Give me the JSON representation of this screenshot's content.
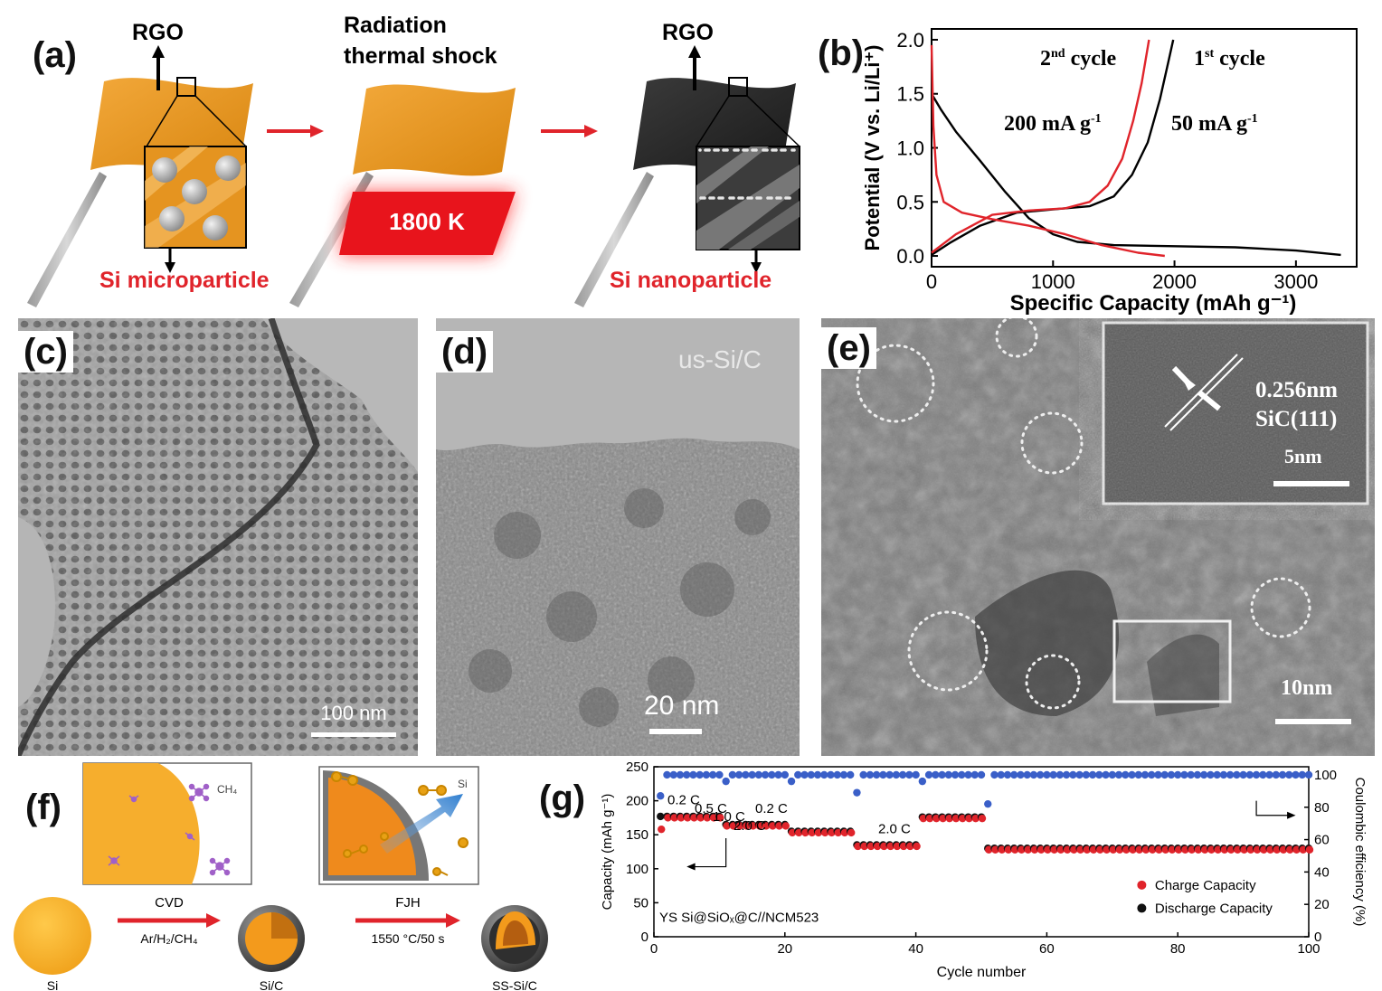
{
  "panels": {
    "a": {
      "label": "(a)",
      "rgo_left": "RGO",
      "rgo_right": "RGO",
      "process_title_1": "Radiation",
      "process_title_2": "thermal shock",
      "temperature": "1800 K",
      "left_caption": "Si microparticle",
      "right_caption": "Si nanoparticle",
      "colors": {
        "sheet": "#e8951e",
        "dark_sheet": "#2b2b2b",
        "heat": "#e8141c",
        "caption": "#e0242b"
      }
    },
    "b": {
      "label": "(b)",
      "annotations": {
        "cycle2": {
          "num": "2",
          "sup": "nd",
          "rest": " cycle"
        },
        "cycle1": {
          "num": "1",
          "sup": "st",
          "rest": " cycle"
        },
        "rate2": {
          "text": "200 mA g",
          "sup": "-1"
        },
        "rate1": {
          "text": "50 mA g",
          "sup": "-1"
        }
      }
    },
    "c": {
      "label": "(c)",
      "scalebar": "100 nm"
    },
    "d": {
      "label": "(d)",
      "sample": "us-Si/C",
      "scalebar": "20 nm"
    },
    "e": {
      "label": "(e)",
      "inset_spacing": "0.256nm",
      "inset_plane": "SiC(111)",
      "inset_scalebar": "5nm",
      "scalebar": "10nm"
    },
    "f": {
      "label": "(f)",
      "ch4": "CH₄",
      "si_label": "Si",
      "step1": "CVD",
      "step1_cond": "Ar/H₂/CH₄",
      "step2": "FJH",
      "step2_cond": "1550 °C/50 s",
      "bottom": [
        "Si",
        "Si/C",
        "SS-Si/C"
      ],
      "colors": {
        "si": "#f6ae2d",
        "shell": "#555555",
        "arrow": "#e0242b"
      }
    },
    "g": {
      "label": "(g)"
    }
  },
  "chart_data": [
    {
      "id": "b",
      "type": "line",
      "xlabel": "Specific Capacity (mAh g⁻¹)",
      "ylabel": "Potential (V vs. Li/Li⁺)",
      "xlim": [
        0,
        3500
      ],
      "ylim": [
        -0.1,
        2.1
      ],
      "xticks": [
        0,
        1000,
        2000,
        3000
      ],
      "yticks": [
        0.0,
        0.5,
        1.0,
        1.5,
        2.0
      ],
      "xtick_labels": [
        "0",
        "1000",
        "2000",
        "3000"
      ],
      "ytick_labels": [
        "0.0",
        "0.5",
        "1.0",
        "1.5",
        "2.0"
      ],
      "series": [
        {
          "color": "#000000",
          "discharge": [
            [
              0,
              1.5
            ],
            [
              80,
              1.35
            ],
            [
              200,
              1.15
            ],
            [
              400,
              0.88
            ],
            [
              600,
              0.6
            ],
            [
              800,
              0.35
            ],
            [
              1000,
              0.2
            ],
            [
              1200,
              0.13
            ],
            [
              1500,
              0.1
            ],
            [
              2000,
              0.09
            ],
            [
              2500,
              0.08
            ],
            [
              3000,
              0.05
            ],
            [
              3370,
              0.01
            ]
          ],
          "charge": [
            [
              0,
              0.01
            ],
            [
              150,
              0.12
            ],
            [
              400,
              0.28
            ],
            [
              700,
              0.4
            ],
            [
              1000,
              0.43
            ],
            [
              1300,
              0.46
            ],
            [
              1500,
              0.55
            ],
            [
              1650,
              0.75
            ],
            [
              1780,
              1.05
            ],
            [
              1880,
              1.45
            ],
            [
              1950,
              1.8
            ],
            [
              1990,
              2.0
            ]
          ]
        },
        {
          "color": "#e0242b",
          "discharge": [
            [
              0,
              1.95
            ],
            [
              15,
              1.2
            ],
            [
              40,
              0.75
            ],
            [
              100,
              0.5
            ],
            [
              250,
              0.4
            ],
            [
              500,
              0.34
            ],
            [
              800,
              0.28
            ],
            [
              1100,
              0.2
            ],
            [
              1400,
              0.1
            ],
            [
              1700,
              0.03
            ],
            [
              1920,
              0.0
            ]
          ],
          "charge": [
            [
              0,
              0.03
            ],
            [
              200,
              0.2
            ],
            [
              500,
              0.38
            ],
            [
              800,
              0.42
            ],
            [
              1100,
              0.44
            ],
            [
              1300,
              0.5
            ],
            [
              1450,
              0.65
            ],
            [
              1570,
              0.9
            ],
            [
              1660,
              1.25
            ],
            [
              1730,
              1.6
            ],
            [
              1790,
              2.0
            ]
          ]
        }
      ]
    },
    {
      "id": "g",
      "type": "scatter",
      "xlabel": "Cycle number",
      "ylabel": "Capacity (mAh g⁻¹)",
      "y2label": "Coulombic efficiency (%)",
      "xlim": [
        0,
        100
      ],
      "ylim": [
        0,
        250
      ],
      "y2lim": [
        0,
        105
      ],
      "xticks": [
        0,
        20,
        40,
        60,
        80,
        100
      ],
      "yticks": [
        0,
        50,
        100,
        150,
        200,
        250
      ],
      "y2ticks": [
        0,
        20,
        40,
        60,
        80,
        100
      ],
      "xtick_labels": [
        "0",
        "20",
        "40",
        "60",
        "80",
        "100"
      ],
      "ytick_labels": [
        "0",
        "50",
        "100",
        "150",
        "200",
        "250"
      ],
      "y2tick_labels": [
        "0",
        "20",
        "40",
        "60",
        "80",
        "100"
      ],
      "rate_labels": [
        "0.2 C",
        "0.5 C",
        "1.0 C",
        "2.0 C",
        "0.2 C",
        "2.0 C"
      ],
      "cell": "YS Si@SiOₓ@C//NCM523",
      "legend": {
        "placement": "bottom-right",
        "entries": [
          "Charge Capacity",
          "Discharge Capacity"
        ]
      },
      "charge_color": "#e0242b",
      "discharge_color": "#111111",
      "ce_color": "#3a5fc8",
      "segments": [
        {
          "from": 1,
          "to": 10,
          "capacity": 175
        },
        {
          "from": 11,
          "to": 20,
          "capacity": 163
        },
        {
          "from": 21,
          "to": 30,
          "capacity": 153
        },
        {
          "from": 31,
          "to": 40,
          "capacity": 133
        },
        {
          "from": 41,
          "to": 50,
          "capacity": 174
        },
        {
          "from": 51,
          "to": 100,
          "capacity": 128
        }
      ],
      "first_charge": 158,
      "ce": 100
    }
  ]
}
